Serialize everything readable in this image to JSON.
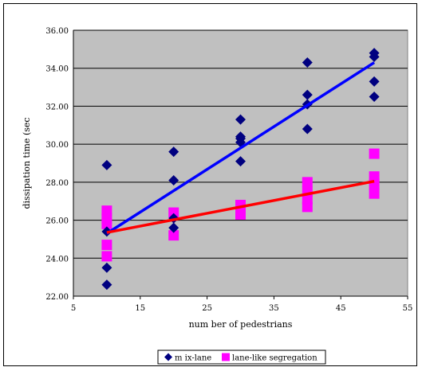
{
  "chart_data": {
    "type": "scatter",
    "xlabel": "num ber of pedestrians",
    "ylabel": "dissipation time (sec",
    "xlim": [
      5,
      55
    ],
    "ylim": [
      22,
      36
    ],
    "x_ticks": [
      "5",
      "15",
      "25",
      "35",
      "45",
      "55"
    ],
    "y_ticks": [
      "22.00",
      "24.00",
      "26.00",
      "28.00",
      "30.00",
      "32.00",
      "34.00",
      "36.00"
    ],
    "grid": "horizontal",
    "plot_background": "#c0c0c0",
    "legend_position": "bottom",
    "series": [
      {
        "name": "m ix-lane",
        "marker": "diamond",
        "color": "#000080",
        "trend_color": "#0000ff",
        "points": [
          [
            10,
            28.9
          ],
          [
            10,
            25.4
          ],
          [
            10,
            23.5
          ],
          [
            10,
            22.6
          ],
          [
            20,
            29.6
          ],
          [
            20,
            28.1
          ],
          [
            20,
            26.1
          ],
          [
            20,
            25.6
          ],
          [
            30,
            31.3
          ],
          [
            30,
            30.4
          ],
          [
            30,
            30.3
          ],
          [
            30,
            30.1
          ],
          [
            30,
            29.1
          ],
          [
            40,
            34.3
          ],
          [
            40,
            32.6
          ],
          [
            40,
            32.1
          ],
          [
            40,
            30.8
          ],
          [
            50,
            34.8
          ],
          [
            50,
            34.6
          ],
          [
            50,
            33.3
          ],
          [
            50,
            32.5
          ]
        ],
        "trend": [
          [
            10,
            25.3
          ],
          [
            50,
            34.3
          ]
        ]
      },
      {
        "name": "lane-like segregation",
        "marker": "square",
        "color": "#ff00ff",
        "trend_color": "#ff0000",
        "points": [
          [
            10,
            26.5
          ],
          [
            10,
            26.1
          ],
          [
            10,
            25.8
          ],
          [
            10,
            24.7
          ],
          [
            10,
            24.1
          ],
          [
            20,
            26.4
          ],
          [
            20,
            25.2
          ],
          [
            30,
            26.8
          ],
          [
            30,
            26.5
          ],
          [
            30,
            26.3
          ],
          [
            40,
            28.0
          ],
          [
            40,
            27.5
          ],
          [
            40,
            27.1
          ],
          [
            40,
            26.7
          ],
          [
            50,
            29.5
          ],
          [
            50,
            28.3
          ],
          [
            50,
            27.9
          ],
          [
            50,
            27.4
          ]
        ],
        "trend": [
          [
            10,
            25.35
          ],
          [
            50,
            28.05
          ]
        ]
      }
    ]
  }
}
